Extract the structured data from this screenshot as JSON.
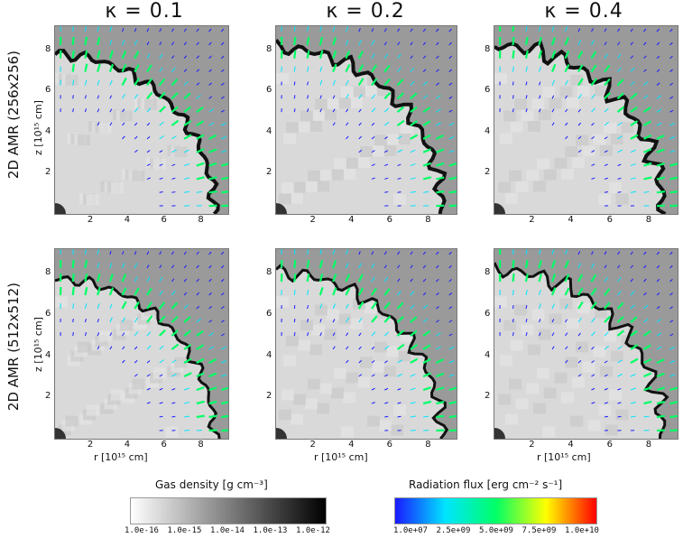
{
  "columns": [
    "κ = 0.1",
    "κ = 0.2",
    "κ = 0.4"
  ],
  "rows": [
    "2D AMR (256x256)",
    "2D AMR (512x512)"
  ],
  "axes": {
    "xlabel": "r [10¹⁵ cm]",
    "ylabel": "z [10¹⁵ cm]",
    "xticks": [
      "2",
      "4",
      "6",
      "8"
    ],
    "yticks": [
      "2",
      "4",
      "6",
      "8"
    ]
  },
  "colorbars": {
    "density": {
      "title": "Gas density [g cm⁻³]",
      "ticks": [
        "1.0e-16",
        "1.0e-15",
        "1.0e-14",
        "1.0e-13",
        "1.0e-12"
      ],
      "colors": [
        "#ffffff",
        "#000000"
      ]
    },
    "flux": {
      "title": "Radiation flux [erg  cm⁻² s⁻¹]",
      "ticks": [
        "1.0e+07",
        "2.5e+09",
        "5.0e+09",
        "7.5e+09",
        "1.0e+10"
      ],
      "colors": [
        "#1a1aff",
        "#00e5ff",
        "#00ff66",
        "#ffff00",
        "#ff0000"
      ]
    }
  },
  "colors": {
    "background": "#9a9a9a",
    "interior": "#d9d9d9",
    "shell": "#111111"
  }
}
